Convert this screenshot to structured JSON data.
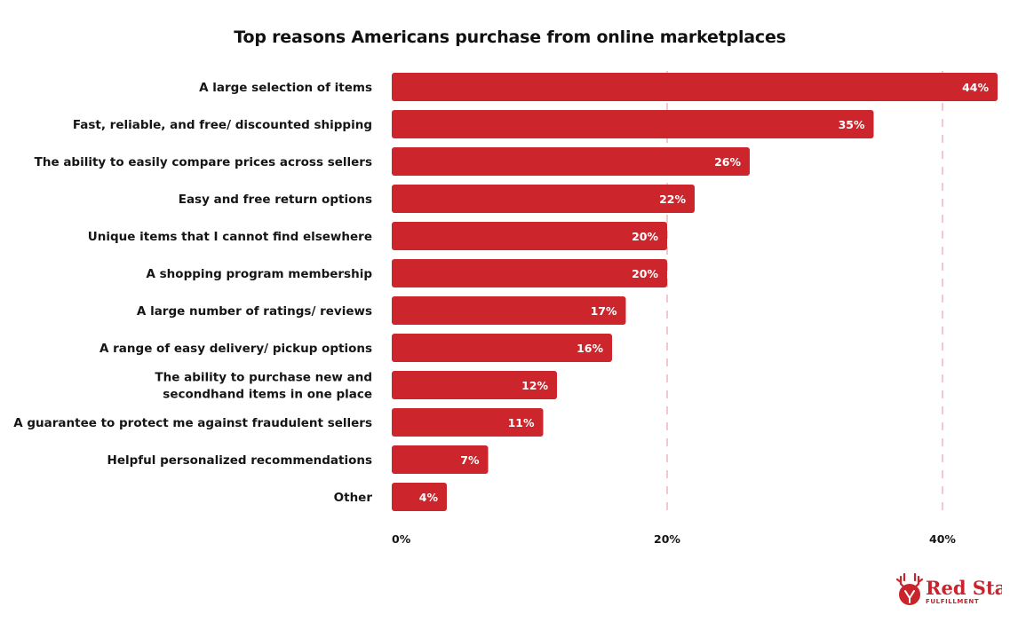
{
  "chart_data": {
    "type": "bar",
    "orientation": "horizontal",
    "title": "Top reasons Americans purchase from online marketplaces",
    "categories": [
      [
        "A large selection of items"
      ],
      [
        "Fast, reliable, and free/ discounted shipping"
      ],
      [
        "The ability to easily compare prices across sellers"
      ],
      [
        "Easy and free return options"
      ],
      [
        "Unique items that I cannot find elsewhere"
      ],
      [
        "A shopping program membership"
      ],
      [
        "A large number of ratings/ reviews"
      ],
      [
        "A range of easy delivery/ pickup options"
      ],
      [
        "The ability to purchase new and",
        "secondhand items in one place"
      ],
      [
        "A guarantee to protect me against fraudulent sellers"
      ],
      [
        "Helpful personalized recommendations"
      ],
      [
        "Other"
      ]
    ],
    "values": [
      44,
      35,
      26,
      22,
      20,
      20,
      17,
      16,
      12,
      11,
      7,
      4
    ],
    "value_labels": [
      "44%",
      "35%",
      "26%",
      "22%",
      "20%",
      "20%",
      "17%",
      "16%",
      "12%",
      "11%",
      "7%",
      "4%"
    ],
    "x_ticks": [
      0,
      20,
      40
    ],
    "x_tick_labels": [
      "0%",
      "20%",
      "40%"
    ],
    "xlim": [
      0,
      44
    ],
    "grid": "vertical dashed at 20% and 40%",
    "bar_color": "#cd252c",
    "grid_color": "#f2c9cc"
  },
  "branding": {
    "logo_name": "Red Stag",
    "logo_sub": "FULFILLMENT",
    "logo_icon": "stag-head-icon",
    "color": "#c9242c"
  }
}
